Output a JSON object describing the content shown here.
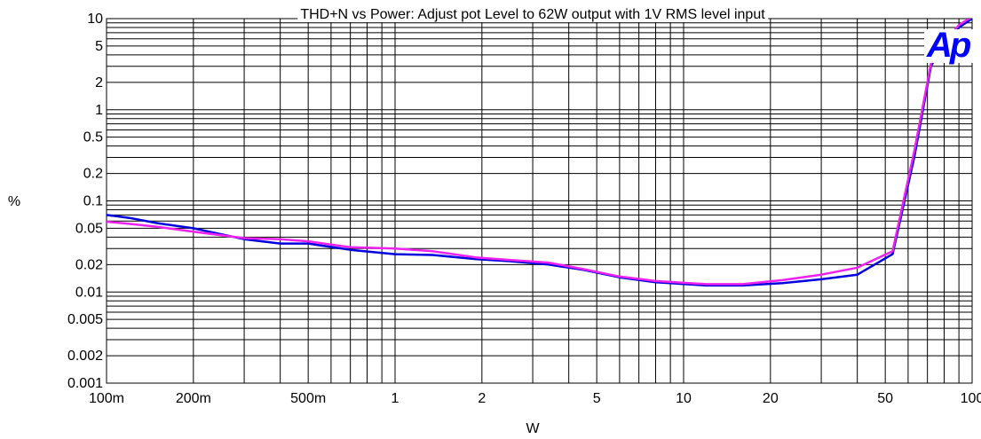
{
  "chart_data": {
    "type": "line",
    "title": "THD+N vs Power: Adjust pot Level to 62W output with 1V RMS level input",
    "xlabel": "W",
    "ylabel": "%",
    "xscale": "log",
    "yscale": "log",
    "xlim": [
      0.1,
      100
    ],
    "ylim": [
      0.001,
      10
    ],
    "grid": true,
    "x_ticks": [
      {
        "value": 0.1,
        "label": "100m"
      },
      {
        "value": 0.2,
        "label": "200m"
      },
      {
        "value": 0.5,
        "label": "500m"
      },
      {
        "value": 1,
        "label": "1"
      },
      {
        "value": 2,
        "label": "2"
      },
      {
        "value": 5,
        "label": "5"
      },
      {
        "value": 10,
        "label": "10"
      },
      {
        "value": 20,
        "label": "20"
      },
      {
        "value": 50,
        "label": "50"
      },
      {
        "value": 100,
        "label": "100"
      }
    ],
    "y_ticks": [
      {
        "value": 10,
        "label": "10"
      },
      {
        "value": 5,
        "label": "5"
      },
      {
        "value": 2,
        "label": "2"
      },
      {
        "value": 1,
        "label": "1"
      },
      {
        "value": 0.5,
        "label": "0.5"
      },
      {
        "value": 0.2,
        "label": "0.2"
      },
      {
        "value": 0.1,
        "label": "0.1"
      },
      {
        "value": 0.05,
        "label": "0.05"
      },
      {
        "value": 0.02,
        "label": "0.02"
      },
      {
        "value": 0.01,
        "label": "0.01"
      },
      {
        "value": 0.005,
        "label": "0.005"
      },
      {
        "value": 0.002,
        "label": "0.002"
      },
      {
        "value": 0.001,
        "label": "0.001"
      }
    ],
    "series": [
      {
        "color": "#0000dd",
        "x": [
          0.1,
          0.12,
          0.15,
          0.2,
          0.3,
          0.4,
          0.5,
          0.7,
          1.0,
          1.35,
          1.9,
          2.5,
          3.4,
          4.5,
          6.0,
          8.0,
          12,
          16,
          22,
          30,
          40,
          53,
          63,
          72,
          80,
          90,
          100
        ],
        "y": [
          0.07,
          0.065,
          0.057,
          0.05,
          0.038,
          0.034,
          0.034,
          0.029,
          0.026,
          0.0255,
          0.023,
          0.0218,
          0.02,
          0.0175,
          0.0145,
          0.0128,
          0.0118,
          0.0118,
          0.0125,
          0.0138,
          0.0155,
          0.026,
          0.3,
          3.0,
          5.5,
          8,
          10
        ]
      },
      {
        "color": "#ee22ee",
        "x": [
          0.1,
          0.12,
          0.15,
          0.2,
          0.3,
          0.4,
          0.5,
          0.7,
          1.0,
          1.35,
          1.9,
          2.5,
          3.4,
          4.5,
          6.0,
          8.0,
          12,
          16,
          22,
          30,
          40,
          53,
          63,
          72,
          80,
          90,
          100
        ],
        "y": [
          0.059,
          0.056,
          0.052,
          0.046,
          0.039,
          0.038,
          0.036,
          0.031,
          0.03,
          0.028,
          0.024,
          0.0225,
          0.021,
          0.0178,
          0.0148,
          0.0132,
          0.0122,
          0.0122,
          0.0135,
          0.0155,
          0.0185,
          0.028,
          0.35,
          3.2,
          5.5,
          8.5,
          10.5
        ]
      }
    ]
  },
  "logo": {
    "text": "Ap",
    "color": "#0000ff"
  }
}
